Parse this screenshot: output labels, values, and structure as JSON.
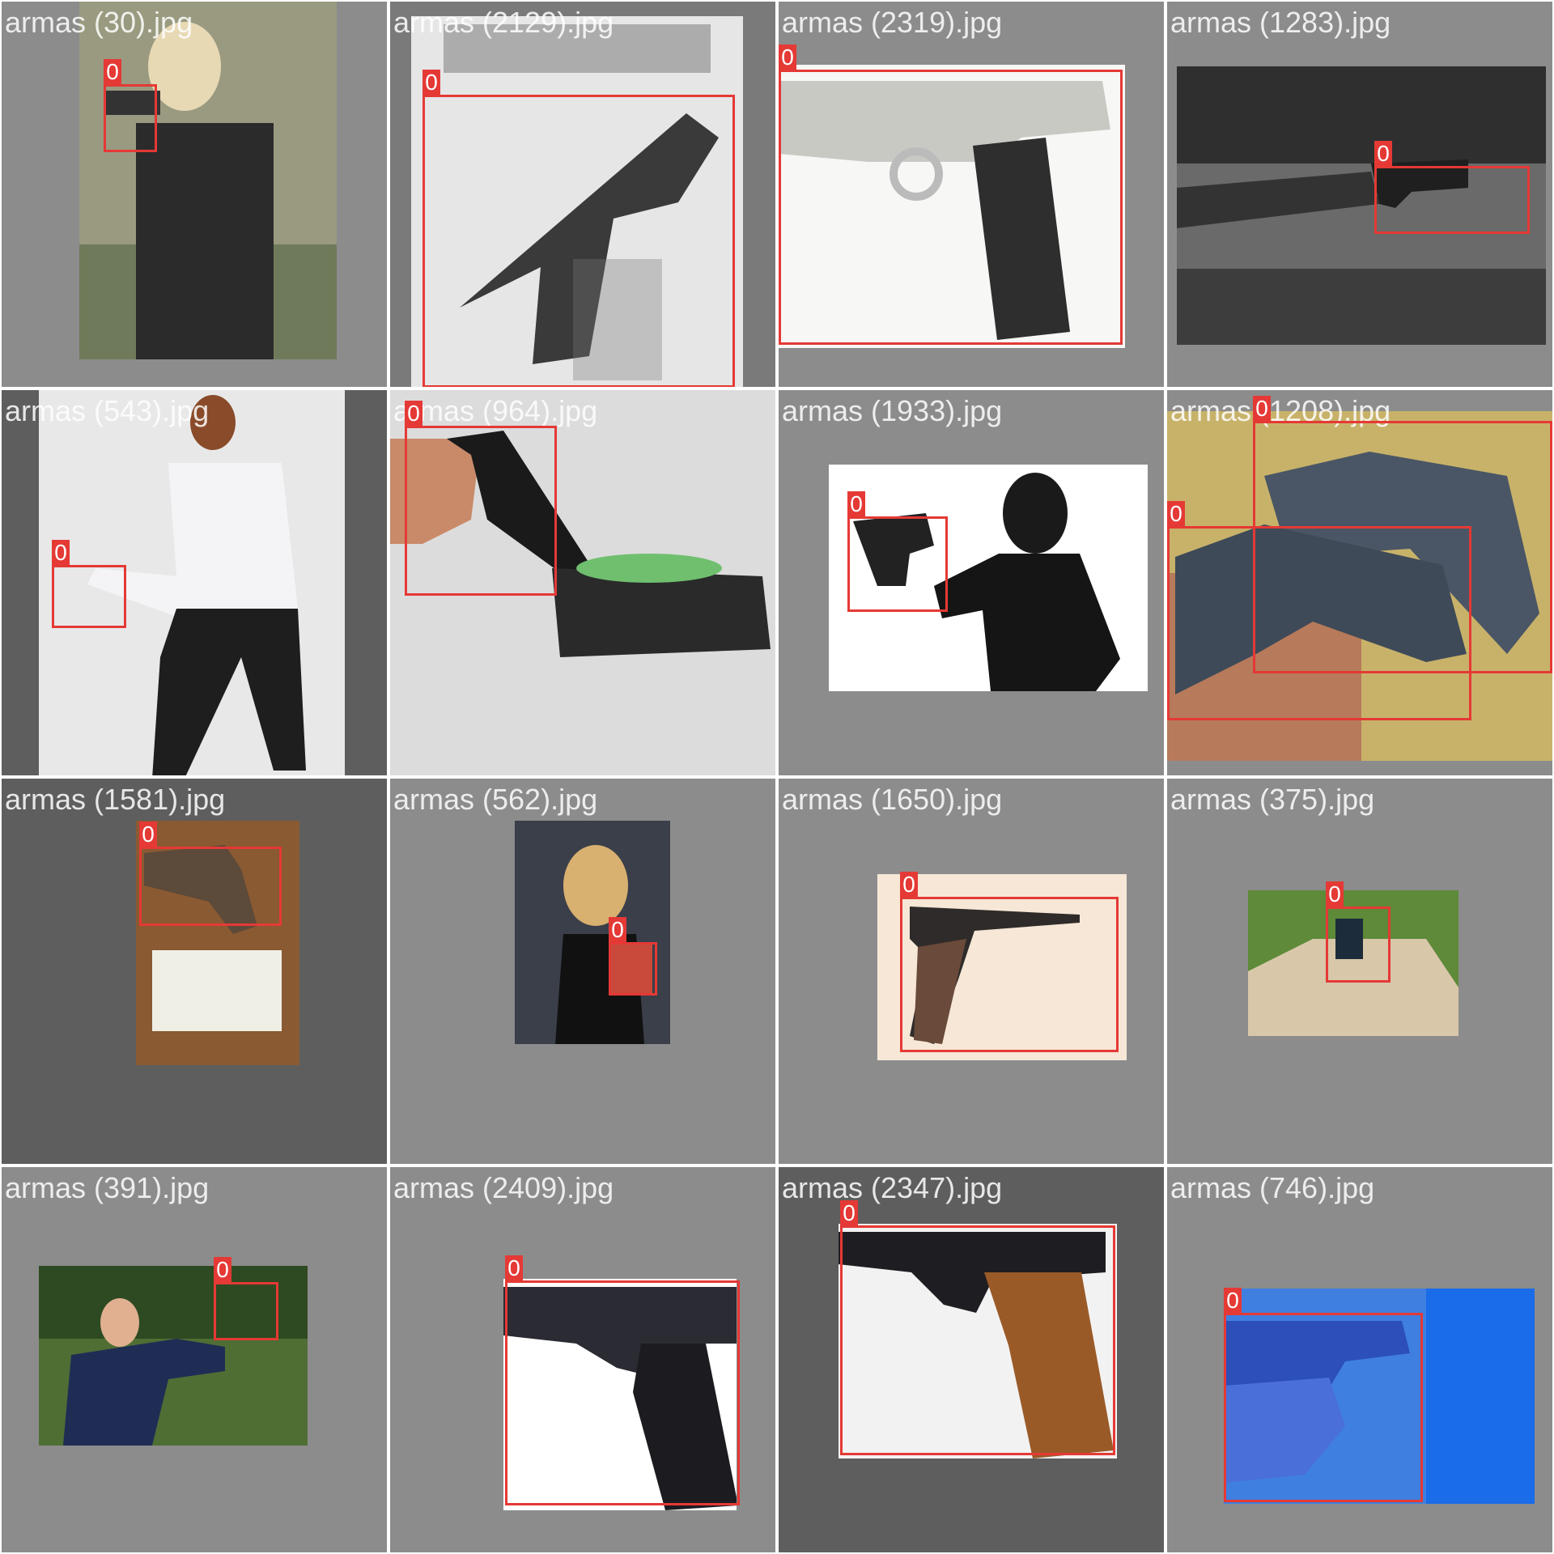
{
  "tiles": [
    {
      "filename": "armas (30).jpg",
      "labels": [
        "0"
      ]
    },
    {
      "filename": "armas (2129).jpg",
      "labels": [
        "0"
      ]
    },
    {
      "filename": "armas (2319).jpg",
      "labels": [
        "0"
      ]
    },
    {
      "filename": "armas (1283).jpg",
      "labels": [
        "0"
      ]
    },
    {
      "filename": "armas (543).jpg",
      "labels": [
        "0"
      ]
    },
    {
      "filename": "armas (964).jpg",
      "labels": [
        "0"
      ]
    },
    {
      "filename": "armas (1933).jpg",
      "labels": [
        "0"
      ]
    },
    {
      "filename": "armas (1208).jpg",
      "labels": [
        "0",
        "0"
      ]
    },
    {
      "filename": "armas (1581).jpg",
      "labels": [
        "0"
      ]
    },
    {
      "filename": "armas (562).jpg",
      "labels": [
        "0"
      ]
    },
    {
      "filename": "armas (1650).jpg",
      "labels": [
        "0"
      ]
    },
    {
      "filename": "armas (375).jpg",
      "labels": [
        "0"
      ]
    },
    {
      "filename": "armas (391).jpg",
      "labels": [
        "0"
      ]
    },
    {
      "filename": "armas (2409).jpg",
      "labels": [
        "0"
      ]
    },
    {
      "filename": "armas (2347).jpg",
      "labels": [
        "0"
      ]
    },
    {
      "filename": "armas (746).jpg",
      "labels": [
        "0"
      ]
    }
  ],
  "colors": {
    "bbox": "#e53935",
    "tile_bg": "#8c8c8c"
  }
}
